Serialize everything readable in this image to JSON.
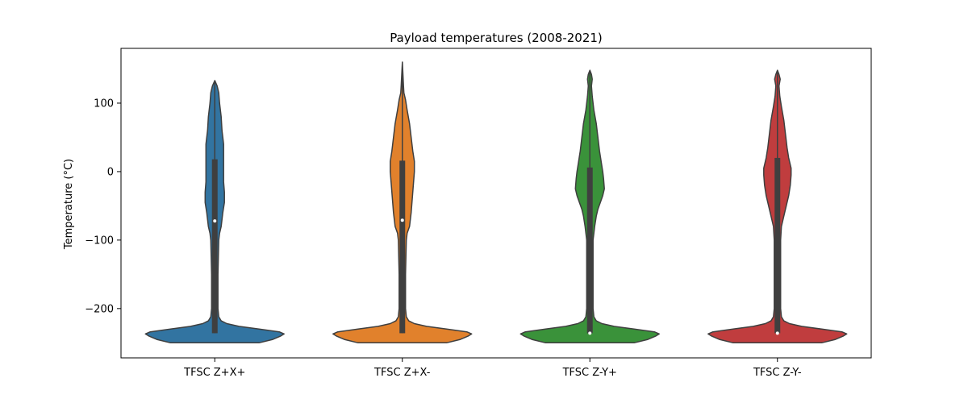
{
  "chart_data": {
    "type": "violin",
    "title": "Payload temperatures (2008-2021)",
    "xlabel": "",
    "ylabel": "Temperature (°C)",
    "ylim": [
      -272,
      180
    ],
    "yticks": [
      -200,
      -100,
      0,
      100
    ],
    "ytick_labels": [
      "−200",
      "−100",
      "0",
      "100"
    ],
    "categories": [
      "TFSC Z+X+",
      "TFSC Z+X-",
      "TFSC Z-Y+",
      "TFSC Z-Y-"
    ],
    "colors": [
      "#3274a1",
      "#e1812c",
      "#3a923a",
      "#c03d3e"
    ],
    "edge_color": "#3f3f3f",
    "series": [
      {
        "name": "TFSC Z+X+",
        "min": -250,
        "q1": -236,
        "median": -72,
        "q3": 18,
        "whisker_low": -236,
        "whisker_high": 133,
        "density": [
          [
            -250,
            0.55
          ],
          [
            -245,
            0.72
          ],
          [
            -240,
            0.82
          ],
          [
            -237,
            0.86
          ],
          [
            -234,
            0.8
          ],
          [
            -230,
            0.55
          ],
          [
            -226,
            0.3
          ],
          [
            -222,
            0.15
          ],
          [
            -218,
            0.08
          ],
          [
            -212,
            0.05
          ],
          [
            -200,
            0.04
          ],
          [
            -150,
            0.04
          ],
          [
            -100,
            0.05
          ],
          [
            -90,
            0.06
          ],
          [
            -80,
            0.08
          ],
          [
            -70,
            0.09
          ],
          [
            -60,
            0.1
          ],
          [
            -45,
            0.12
          ],
          [
            -30,
            0.12
          ],
          [
            -15,
            0.11
          ],
          [
            0,
            0.11
          ],
          [
            20,
            0.11
          ],
          [
            40,
            0.11
          ],
          [
            60,
            0.09
          ],
          [
            80,
            0.08
          ],
          [
            100,
            0.06
          ],
          [
            115,
            0.05
          ],
          [
            125,
            0.03
          ],
          [
            133,
            0.0
          ]
        ]
      },
      {
        "name": "TFSC Z+X-",
        "min": -250,
        "q1": -236,
        "median": -71,
        "q3": 16,
        "whisker_low": -236,
        "whisker_high": 160,
        "density": [
          [
            -250,
            0.55
          ],
          [
            -245,
            0.72
          ],
          [
            -240,
            0.82
          ],
          [
            -237,
            0.86
          ],
          [
            -234,
            0.8
          ],
          [
            -230,
            0.55
          ],
          [
            -226,
            0.3
          ],
          [
            -222,
            0.15
          ],
          [
            -218,
            0.08
          ],
          [
            -212,
            0.05
          ],
          [
            -200,
            0.04
          ],
          [
            -150,
            0.04
          ],
          [
            -100,
            0.05
          ],
          [
            -90,
            0.06
          ],
          [
            -80,
            0.09
          ],
          [
            -70,
            0.1
          ],
          [
            -60,
            0.11
          ],
          [
            -45,
            0.12
          ],
          [
            -30,
            0.13
          ],
          [
            -15,
            0.14
          ],
          [
            0,
            0.15
          ],
          [
            15,
            0.15
          ],
          [
            30,
            0.13
          ],
          [
            50,
            0.11
          ],
          [
            70,
            0.09
          ],
          [
            90,
            0.06
          ],
          [
            105,
            0.04
          ],
          [
            115,
            0.02
          ],
          [
            125,
            0.015
          ],
          [
            160,
            0.0
          ]
        ]
      },
      {
        "name": "TFSC Z-Y+",
        "min": -250,
        "q1": -236,
        "median": -236,
        "q3": 6,
        "whisker_low": -236,
        "whisker_high": 148,
        "density": [
          [
            -250,
            0.55
          ],
          [
            -245,
            0.72
          ],
          [
            -240,
            0.82
          ],
          [
            -237,
            0.86
          ],
          [
            -234,
            0.8
          ],
          [
            -230,
            0.55
          ],
          [
            -226,
            0.3
          ],
          [
            -222,
            0.15
          ],
          [
            -218,
            0.08
          ],
          [
            -212,
            0.05
          ],
          [
            -200,
            0.04
          ],
          [
            -150,
            0.04
          ],
          [
            -100,
            0.04
          ],
          [
            -80,
            0.06
          ],
          [
            -65,
            0.08
          ],
          [
            -55,
            0.1
          ],
          [
            -45,
            0.13
          ],
          [
            -35,
            0.16
          ],
          [
            -25,
            0.18
          ],
          [
            -10,
            0.17
          ],
          [
            0,
            0.16
          ],
          [
            15,
            0.14
          ],
          [
            30,
            0.12
          ],
          [
            50,
            0.1
          ],
          [
            70,
            0.08
          ],
          [
            90,
            0.05
          ],
          [
            110,
            0.03
          ],
          [
            125,
            0.02
          ],
          [
            135,
            0.03
          ],
          [
            142,
            0.02
          ],
          [
            148,
            0.0
          ]
        ]
      },
      {
        "name": "TFSC Z-Y-",
        "min": -250,
        "q1": -236,
        "median": -236,
        "q3": 20,
        "whisker_low": -236,
        "whisker_high": 148,
        "density": [
          [
            -250,
            0.55
          ],
          [
            -245,
            0.72
          ],
          [
            -240,
            0.82
          ],
          [
            -237,
            0.86
          ],
          [
            -234,
            0.8
          ],
          [
            -230,
            0.55
          ],
          [
            -226,
            0.3
          ],
          [
            -222,
            0.15
          ],
          [
            -218,
            0.08
          ],
          [
            -212,
            0.05
          ],
          [
            -200,
            0.04
          ],
          [
            -150,
            0.04
          ],
          [
            -100,
            0.04
          ],
          [
            -80,
            0.05
          ],
          [
            -65,
            0.08
          ],
          [
            -50,
            0.11
          ],
          [
            -35,
            0.14
          ],
          [
            -20,
            0.16
          ],
          [
            -5,
            0.17
          ],
          [
            5,
            0.17
          ],
          [
            20,
            0.14
          ],
          [
            35,
            0.12
          ],
          [
            55,
            0.1
          ],
          [
            75,
            0.08
          ],
          [
            95,
            0.05
          ],
          [
            110,
            0.03
          ],
          [
            125,
            0.02
          ],
          [
            135,
            0.035
          ],
          [
            142,
            0.02
          ],
          [
            148,
            0.0
          ]
        ]
      }
    ]
  }
}
